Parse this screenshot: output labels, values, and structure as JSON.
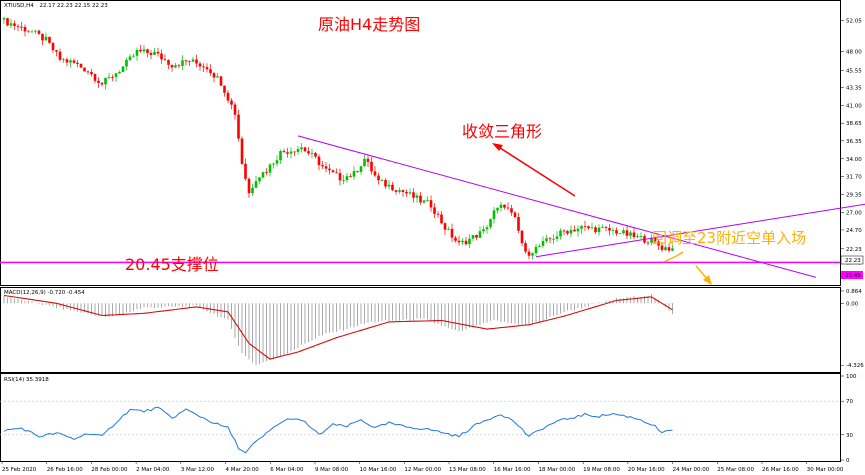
{
  "header": {
    "symbol_label": "XTIUSD,H4",
    "ohlc": "22.17 22.23 22.15 22.23",
    "macd_label": "MACD(12,26,9) -0.720 -0.454",
    "rsi_label": "RSI(14) 35.3918"
  },
  "annotations": {
    "title": "原油H4走势图",
    "triangle": "收敛三角形",
    "support": "20.45支撑位",
    "pullback": "回调至23附近空单入场"
  },
  "colors": {
    "bull": "#00c000",
    "bear": "#ff0000",
    "trendline": "#b000ff",
    "support_line": "#ff00ff",
    "macd_signal": "#d01010",
    "rsi_line": "#1e78e0",
    "annotation_red": "#ff0000",
    "annotation_orange": "#ffb000"
  },
  "chart_data": [
    {
      "type": "candlestick",
      "name": "price",
      "y_ticks": [
        "52.05",
        "48.00",
        "45.55",
        "43.35",
        "41.00",
        "38.65",
        "36.35",
        "34.00",
        "31.70",
        "29.35",
        "27.00",
        "24.70",
        "22.23",
        "20.45"
      ],
      "ylim": [
        17.5,
        54.5
      ],
      "current_price": 22.23,
      "support_level": 20.45,
      "close_path": [
        {
          "i": 0,
          "v": 52.0
        },
        {
          "i": 4,
          "v": 51.3
        },
        {
          "i": 8,
          "v": 50.6
        },
        {
          "i": 12,
          "v": 49.5
        },
        {
          "i": 16,
          "v": 47.0
        },
        {
          "i": 20,
          "v": 46.5
        },
        {
          "i": 24,
          "v": 45.5
        },
        {
          "i": 28,
          "v": 43.8
        },
        {
          "i": 30,
          "v": 44.5
        },
        {
          "i": 34,
          "v": 46.0
        },
        {
          "i": 38,
          "v": 48.0
        },
        {
          "i": 43,
          "v": 47.8
        },
        {
          "i": 48,
          "v": 46.3
        },
        {
          "i": 53,
          "v": 46.8
        },
        {
          "i": 58,
          "v": 46.0
        },
        {
          "i": 62,
          "v": 44.0
        },
        {
          "i": 66,
          "v": 40.0
        },
        {
          "i": 68,
          "v": 33.5
        },
        {
          "i": 70,
          "v": 29.5
        },
        {
          "i": 72,
          "v": 31.5
        },
        {
          "i": 75,
          "v": 32.5
        },
        {
          "i": 79,
          "v": 34.8
        },
        {
          "i": 85,
          "v": 35.5
        },
        {
          "i": 89,
          "v": 34.0
        },
        {
          "i": 92,
          "v": 32.5
        },
        {
          "i": 96,
          "v": 31.5
        },
        {
          "i": 100,
          "v": 32.0
        },
        {
          "i": 103,
          "v": 34.0
        },
        {
          "i": 107,
          "v": 31.0
        },
        {
          "i": 111,
          "v": 30.3
        },
        {
          "i": 115,
          "v": 29.5
        },
        {
          "i": 119,
          "v": 28.5
        },
        {
          "i": 122,
          "v": 28.0
        },
        {
          "i": 126,
          "v": 25.0
        },
        {
          "i": 130,
          "v": 22.8
        },
        {
          "i": 133,
          "v": 23.5
        },
        {
          "i": 137,
          "v": 24.5
        },
        {
          "i": 140,
          "v": 27.0
        },
        {
          "i": 143,
          "v": 28.0
        },
        {
          "i": 146,
          "v": 26.0
        },
        {
          "i": 149,
          "v": 21.5
        },
        {
          "i": 152,
          "v": 22.3
        },
        {
          "i": 156,
          "v": 23.5
        },
        {
          "i": 160,
          "v": 24.5
        },
        {
          "i": 165,
          "v": 25.0
        },
        {
          "i": 170,
          "v": 24.8
        },
        {
          "i": 175,
          "v": 24.5
        },
        {
          "i": 180,
          "v": 23.8
        },
        {
          "i": 185,
          "v": 23.3
        },
        {
          "i": 188,
          "v": 22.4
        },
        {
          "i": 191,
          "v": 22.23
        }
      ],
      "trendlines": [
        {
          "name": "upper",
          "from": {
            "i": 84,
            "v": 37.0
          },
          "to": {
            "i": 232,
            "v": 18.5
          }
        },
        {
          "name": "lower",
          "from": {
            "i": 152,
            "v": 21.2
          },
          "to": {
            "i": 252,
            "v": 28.5
          }
        }
      ]
    },
    {
      "type": "histogram+line",
      "name": "MACD(12,26,9)",
      "values": {
        "main": -0.72,
        "signal": -0.454
      },
      "y_ticks": [
        "0.864",
        "0.00",
        "-4.326"
      ],
      "ylim": [
        -4.8,
        1.0
      ],
      "hist_path": [
        {
          "i": 0,
          "v": 0.5
        },
        {
          "i": 15,
          "v": -0.3
        },
        {
          "i": 30,
          "v": -1.0
        },
        {
          "i": 40,
          "v": -0.3
        },
        {
          "i": 55,
          "v": -0.2
        },
        {
          "i": 64,
          "v": -1.2
        },
        {
          "i": 68,
          "v": -3.5
        },
        {
          "i": 72,
          "v": -4.3
        },
        {
          "i": 80,
          "v": -3.6
        },
        {
          "i": 90,
          "v": -2.3
        },
        {
          "i": 105,
          "v": -1.3
        },
        {
          "i": 120,
          "v": -1.1
        },
        {
          "i": 130,
          "v": -2.0
        },
        {
          "i": 140,
          "v": -1.2
        },
        {
          "i": 150,
          "v": -1.6
        },
        {
          "i": 160,
          "v": -0.6
        },
        {
          "i": 175,
          "v": 0.3
        },
        {
          "i": 185,
          "v": 0.6
        },
        {
          "i": 191,
          "v": -0.72
        }
      ],
      "signal_path": [
        {
          "i": 0,
          "v": 0.55
        },
        {
          "i": 15,
          "v": 0.0
        },
        {
          "i": 28,
          "v": -0.85
        },
        {
          "i": 40,
          "v": -0.7
        },
        {
          "i": 55,
          "v": -0.25
        },
        {
          "i": 64,
          "v": -0.6
        },
        {
          "i": 70,
          "v": -2.8
        },
        {
          "i": 76,
          "v": -3.9
        },
        {
          "i": 84,
          "v": -3.4
        },
        {
          "i": 95,
          "v": -2.4
        },
        {
          "i": 110,
          "v": -1.3
        },
        {
          "i": 125,
          "v": -1.2
        },
        {
          "i": 138,
          "v": -1.8
        },
        {
          "i": 150,
          "v": -1.5
        },
        {
          "i": 160,
          "v": -0.9
        },
        {
          "i": 175,
          "v": 0.2
        },
        {
          "i": 185,
          "v": 0.45
        },
        {
          "i": 191,
          "v": -0.454
        }
      ]
    },
    {
      "type": "line",
      "name": "RSI(14)",
      "value": 35.3918,
      "y_ticks": [
        "100",
        "70",
        "30",
        "0"
      ],
      "ylim": [
        0,
        100
      ],
      "rsi_path": [
        {
          "i": 0,
          "v": 35
        },
        {
          "i": 5,
          "v": 38
        },
        {
          "i": 10,
          "v": 28
        },
        {
          "i": 15,
          "v": 32
        },
        {
          "i": 20,
          "v": 25
        },
        {
          "i": 24,
          "v": 32
        },
        {
          "i": 28,
          "v": 28
        },
        {
          "i": 32,
          "v": 45
        },
        {
          "i": 36,
          "v": 60
        },
        {
          "i": 40,
          "v": 58
        },
        {
          "i": 44,
          "v": 62
        },
        {
          "i": 48,
          "v": 50
        },
        {
          "i": 52,
          "v": 60
        },
        {
          "i": 56,
          "v": 52
        },
        {
          "i": 60,
          "v": 44
        },
        {
          "i": 64,
          "v": 38
        },
        {
          "i": 67,
          "v": 15
        },
        {
          "i": 69,
          "v": 8
        },
        {
          "i": 71,
          "v": 18
        },
        {
          "i": 74,
          "v": 28
        },
        {
          "i": 78,
          "v": 42
        },
        {
          "i": 82,
          "v": 50
        },
        {
          "i": 86,
          "v": 45
        },
        {
          "i": 90,
          "v": 30
        },
        {
          "i": 94,
          "v": 42
        },
        {
          "i": 98,
          "v": 40
        },
        {
          "i": 102,
          "v": 48
        },
        {
          "i": 106,
          "v": 38
        },
        {
          "i": 110,
          "v": 44
        },
        {
          "i": 114,
          "v": 40
        },
        {
          "i": 118,
          "v": 38
        },
        {
          "i": 122,
          "v": 36
        },
        {
          "i": 126,
          "v": 32
        },
        {
          "i": 130,
          "v": 28
        },
        {
          "i": 134,
          "v": 40
        },
        {
          "i": 138,
          "v": 48
        },
        {
          "i": 142,
          "v": 55
        },
        {
          "i": 146,
          "v": 45
        },
        {
          "i": 150,
          "v": 28
        },
        {
          "i": 154,
          "v": 38
        },
        {
          "i": 158,
          "v": 46
        },
        {
          "i": 162,
          "v": 50
        },
        {
          "i": 166,
          "v": 54
        },
        {
          "i": 170,
          "v": 52
        },
        {
          "i": 174,
          "v": 55
        },
        {
          "i": 178,
          "v": 52
        },
        {
          "i": 182,
          "v": 48
        },
        {
          "i": 186,
          "v": 40
        },
        {
          "i": 188,
          "v": 32
        },
        {
          "i": 191,
          "v": 35.4
        }
      ]
    }
  ],
  "x_labels": [
    "25 Feb 2020",
    "26 Feb 16:00",
    "28 Feb 00:00",
    "2 Mar 04:00",
    "3 Mar 12:00",
    "4 Mar 20:00",
    "6 Mar 04:00",
    "9 Mar 08:00",
    "10 Mar 16:00",
    "12 Mar 00:00",
    "13 Mar 08:00",
    "16 Mar 16:00",
    "18 Mar 00:00",
    "19 Mar 08:00",
    "20 Mar 16:00",
    "24 Mar 00:00",
    "25 Mar 08:00",
    "26 Mar 16:00",
    "30 Mar 00:00"
  ]
}
